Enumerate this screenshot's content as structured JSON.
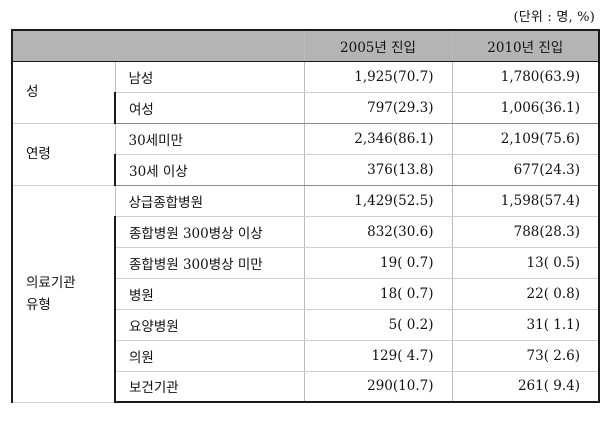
{
  "unit_note": "(단위 : 명, %)",
  "header": {
    "col_2005": "2005년 진입",
    "col_2010": "2010년 진입"
  },
  "groups": {
    "gender": {
      "label": "성",
      "rows": [
        {
          "label": "남성",
          "v2005": "1,925(70.7)",
          "v2010": "1,780(63.9)"
        },
        {
          "label": "여성",
          "v2005": "797(29.3)",
          "v2010": "1,006(36.1)"
        }
      ]
    },
    "age": {
      "label": "연령",
      "rows": [
        {
          "label": "30세미만",
          "v2005": "2,346(86.1)",
          "v2010": "2,109(75.6)"
        },
        {
          "label": "30세 이상",
          "v2005": "376(13.8)",
          "v2010": "677(24.3)"
        }
      ]
    },
    "institution": {
      "label_line1": "의료기관",
      "label_line2": "유형",
      "rows": [
        {
          "label": "상급종합병원",
          "v2005": "1,429(52.5)",
          "v2010": "1,598(57.4)"
        },
        {
          "label": "종합병원 300병상 이상",
          "v2005": "832(30.6)",
          "v2010": "788(28.3)"
        },
        {
          "label": "종합병원 300병상 미만",
          "v2005": "19( 0.7)",
          "v2010": "13( 0.5)"
        },
        {
          "label": "병원",
          "v2005": "18( 0.7)",
          "v2010": "22( 0.8)"
        },
        {
          "label": "요양병원",
          "v2005": "5( 0.2)",
          "v2010": "31( 1.1)"
        },
        {
          "label": "의원",
          "v2005": "129( 4.7)",
          "v2010": "73( 2.6)"
        },
        {
          "label": "보건기관",
          "v2005": "290(10.7)",
          "v2010": "261( 9.4)"
        }
      ]
    }
  }
}
